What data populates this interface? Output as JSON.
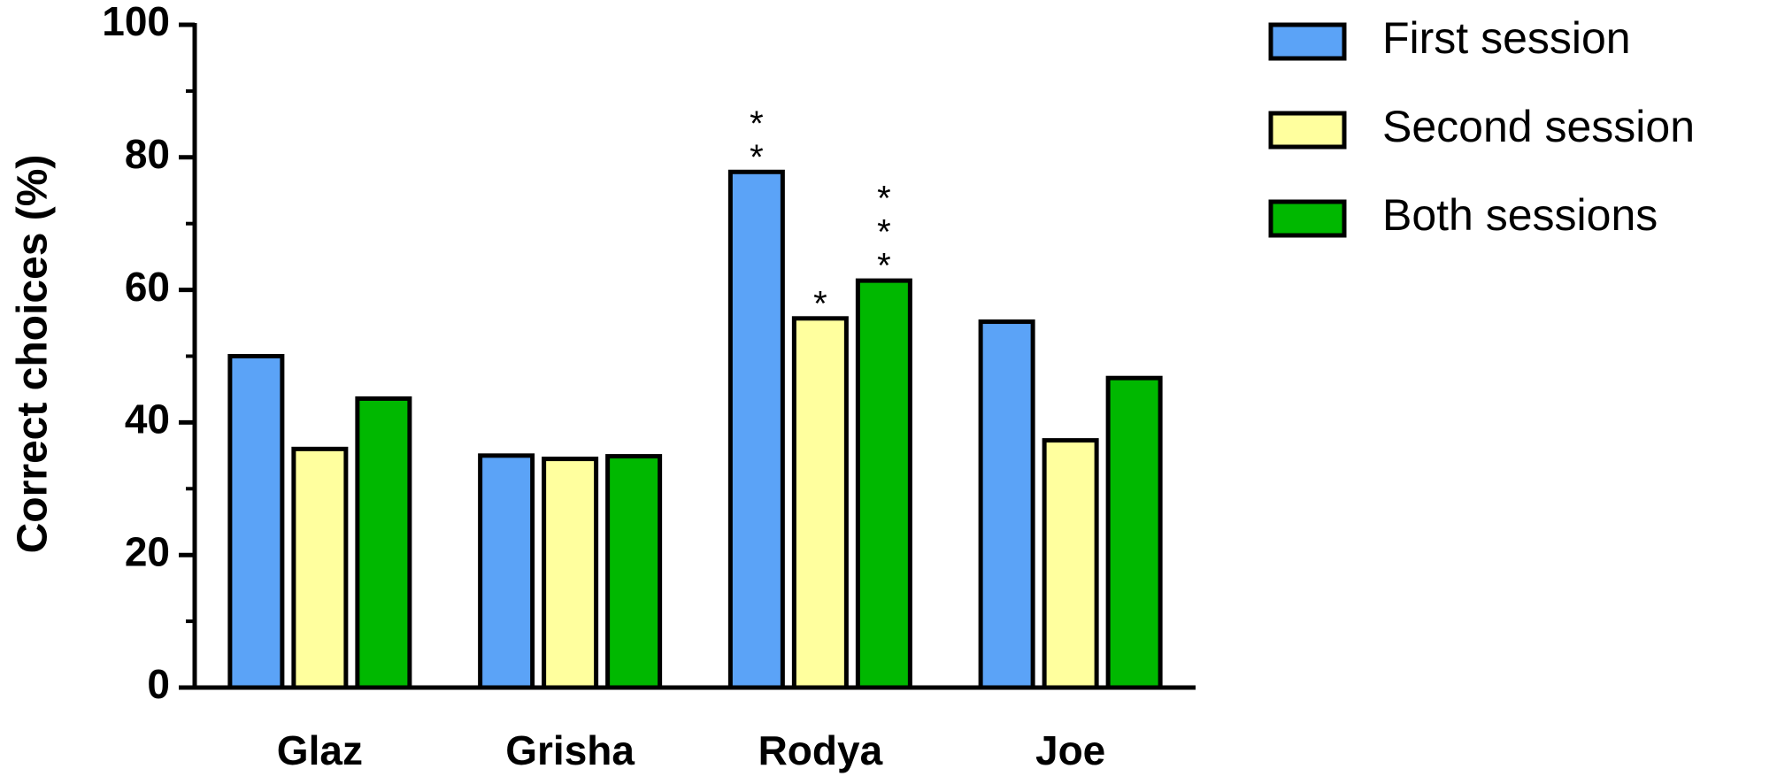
{
  "chart_data": {
    "type": "bar",
    "y_label": "Correct choices (%)",
    "categories": [
      "Glaz",
      "Grisha",
      "Rodya",
      "Joe"
    ],
    "series": [
      {
        "name": "First session",
        "color": "#5ba3f7",
        "values": [
          50,
          35,
          77.8,
          55.2
        ],
        "annotations": [
          null,
          null,
          [
            "*",
            "*"
          ],
          null
        ]
      },
      {
        "name": "Second session",
        "color": "#ffff9e",
        "values": [
          36,
          34.5,
          55.7,
          37.3
        ],
        "annotations": [
          null,
          null,
          [
            "*"
          ],
          null
        ]
      },
      {
        "name": "Both sessions",
        "color": "#00b800",
        "values": [
          43.6,
          34.9,
          61.4,
          46.7
        ],
        "annotations": [
          null,
          null,
          [
            "*",
            "*",
            "*"
          ],
          null
        ]
      }
    ],
    "ylim": [
      0,
      100
    ],
    "yticks": [
      0,
      20,
      40,
      60,
      80,
      100
    ],
    "grid": false,
    "legend": "right"
  }
}
